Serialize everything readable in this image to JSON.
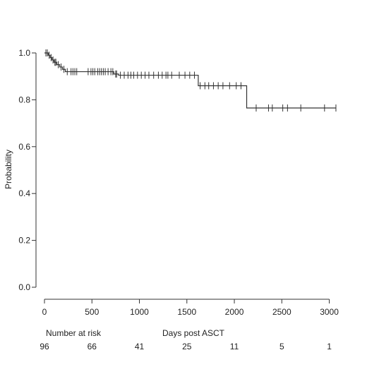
{
  "chart_data": {
    "type": "line",
    "subtype": "kaplan-meier",
    "title": "",
    "xlabel": "Days post ASCT",
    "ylabel": "Probability",
    "xlim": [
      0,
      3100
    ],
    "ylim": [
      0,
      1.0
    ],
    "x_ticks": [
      0,
      500,
      1000,
      1500,
      2000,
      2500,
      3000
    ],
    "y_ticks": [
      "0.0",
      "0.2",
      "0.4",
      "0.6",
      "0.8",
      "1.0"
    ],
    "grid": false,
    "colors": {
      "line": "#333333",
      "axis": "#333333"
    },
    "survival_steps": [
      {
        "x": 0,
        "y": 1.0
      },
      {
        "x": 40,
        "y": 0.99
      },
      {
        "x": 60,
        "y": 0.98
      },
      {
        "x": 80,
        "y": 0.97
      },
      {
        "x": 100,
        "y": 0.96
      },
      {
        "x": 130,
        "y": 0.95
      },
      {
        "x": 160,
        "y": 0.94
      },
      {
        "x": 190,
        "y": 0.93
      },
      {
        "x": 220,
        "y": 0.92
      },
      {
        "x": 730,
        "y": 0.91
      },
      {
        "x": 780,
        "y": 0.905
      },
      {
        "x": 1620,
        "y": 0.86
      },
      {
        "x": 2130,
        "y": 0.765
      }
    ],
    "censor_marks": [
      15,
      30,
      50,
      70,
      90,
      110,
      120,
      145,
      175,
      205,
      240,
      280,
      300,
      320,
      340,
      460,
      490,
      510,
      530,
      560,
      580,
      600,
      620,
      640,
      670,
      700,
      720,
      750,
      760,
      800,
      840,
      880,
      910,
      940,
      980,
      1020,
      1060,
      1100,
      1150,
      1200,
      1240,
      1280,
      1300,
      1340,
      1420,
      1480,
      1530,
      1580,
      1640,
      1690,
      1730,
      1780,
      1830,
      1880,
      1950,
      2020,
      2070,
      2230,
      2360,
      2400,
      2510,
      2560,
      2700,
      2950,
      3070
    ],
    "risk_table": {
      "label": "Number at risk",
      "times": [
        0,
        500,
        1000,
        1500,
        2000,
        2500,
        3000
      ],
      "counts": [
        "96",
        "66",
        "41",
        "25",
        "11",
        "5",
        "1"
      ]
    }
  }
}
